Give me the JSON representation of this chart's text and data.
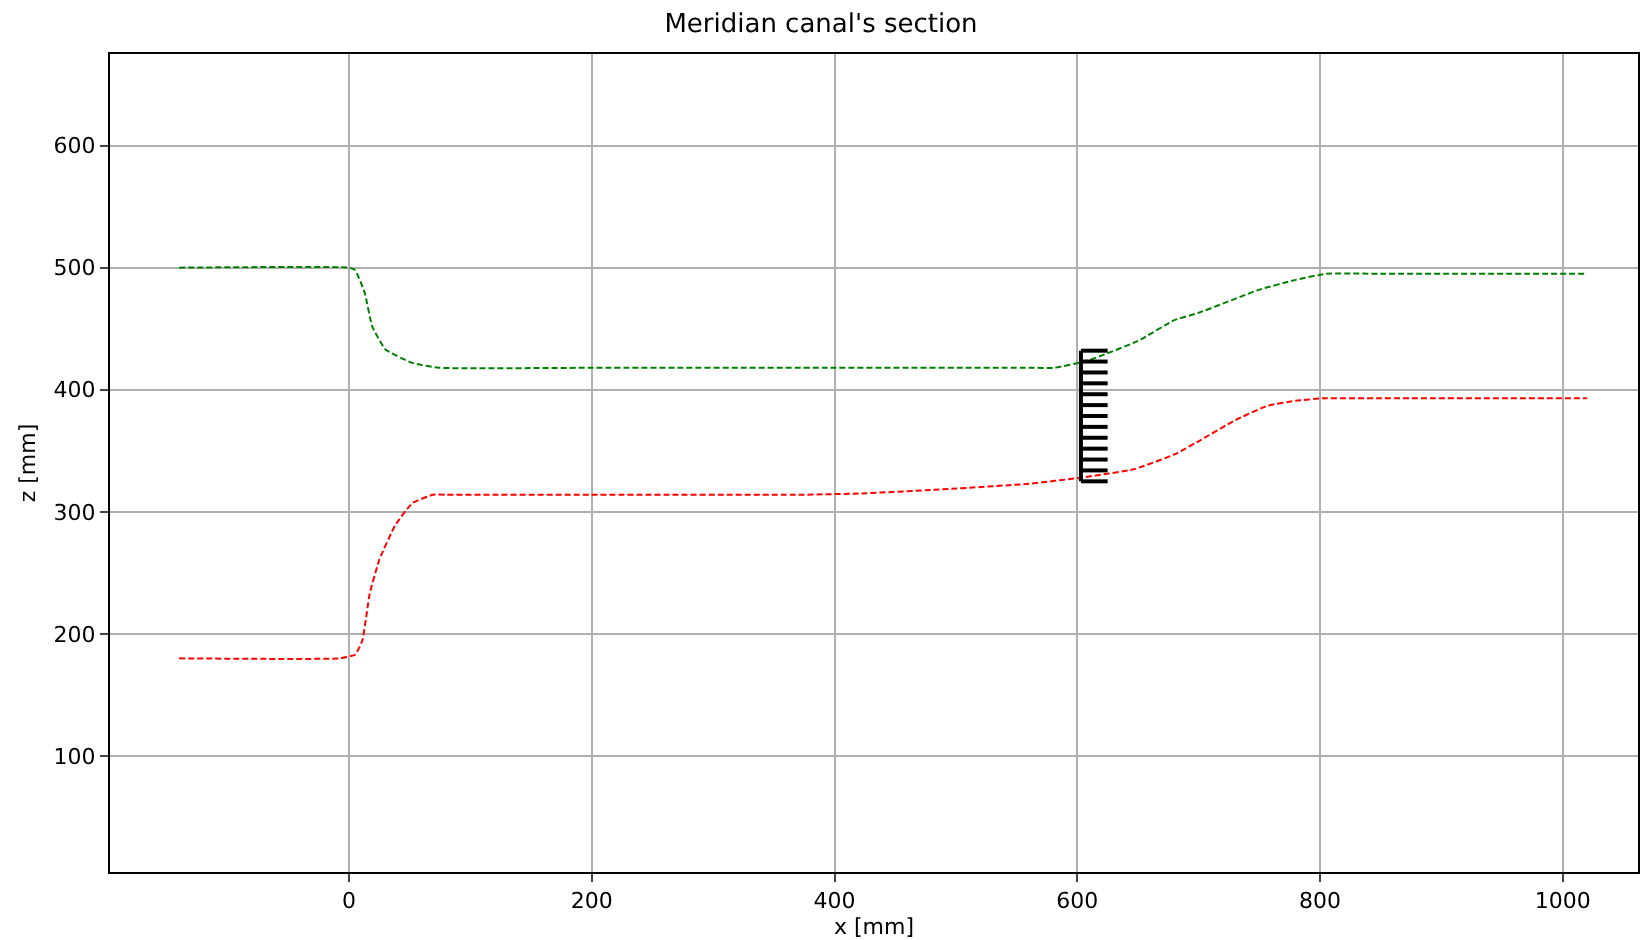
{
  "chart_data": {
    "type": "line",
    "title": "Meridian canal's section",
    "xlabel": "x [mm]",
    "ylabel": "z [mm]",
    "xlim": [
      -197,
      1062
    ],
    "ylim": [
      5,
      675
    ],
    "xticks": [
      0,
      200,
      400,
      600,
      800,
      1000
    ],
    "yticks": [
      100,
      200,
      300,
      400,
      500,
      600
    ],
    "grid": true,
    "line_style": "dashed",
    "marker": "none",
    "series": [
      {
        "color": "#008000",
        "x": [
          -140,
          0,
          5,
          13,
          19,
          30,
          52,
          74,
          200,
          400,
          560,
          581,
          609,
          650,
          680,
          700,
          750,
          780,
          805,
          850,
          1020
        ],
        "values": [
          500,
          500,
          498,
          479,
          452,
          433,
          422,
          418,
          418,
          418,
          418,
          418,
          424,
          440,
          457,
          463,
          482,
          490,
          495,
          495,
          495
        ]
      },
      {
        "color": "#ff0000",
        "x": [
          -140,
          -8,
          5,
          11,
          17,
          25,
          38,
          52,
          69,
          80,
          200,
          372,
          420,
          482,
          560,
          603,
          647,
          680,
          702,
          730,
          757,
          780,
          802,
          850,
          1020
        ],
        "values": [
          180,
          180,
          183,
          195,
          233,
          261,
          289,
          307,
          314,
          314,
          314,
          314,
          315,
          318,
          323,
          328,
          335,
          347,
          359,
          375,
          387,
          391,
          393,
          393,
          393
        ]
      }
    ]
  }
}
